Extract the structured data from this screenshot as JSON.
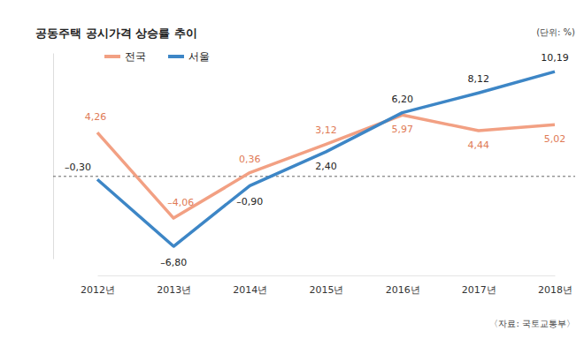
{
  "chart_data": {
    "type": "line",
    "title": "공동주택 공시가격 상승률 추이",
    "subtitle": "(단위: %)",
    "source": "〈자료: 국토교통부〉",
    "categories": [
      "2012년",
      "2013년",
      "2014년",
      "2015년",
      "2016년",
      "2017년",
      "2018년"
    ],
    "series": [
      {
        "name": "전국",
        "color": "#f2a083",
        "values": [
          4.26,
          -4.06,
          0.36,
          3.12,
          5.97,
          4.44,
          5.02
        ],
        "value_labels": [
          "4,26",
          "–4,06",
          "0,36",
          "3,12",
          "5,97",
          "4,44",
          "5,02"
        ]
      },
      {
        "name": "서울",
        "color": "#3d86c6",
        "values": [
          -0.3,
          -6.8,
          -0.9,
          2.4,
          6.2,
          8.12,
          10.19
        ],
        "value_labels": [
          "–0,30",
          "–6,80",
          "–0,90",
          "2,40",
          "6,20",
          "8,12",
          "10,19"
        ]
      }
    ],
    "ylim": [
      -8,
      12
    ],
    "yticks": [
      0
    ],
    "grid": true,
    "legend": "top-left",
    "data_labels": true,
    "tick_labels": "x"
  }
}
